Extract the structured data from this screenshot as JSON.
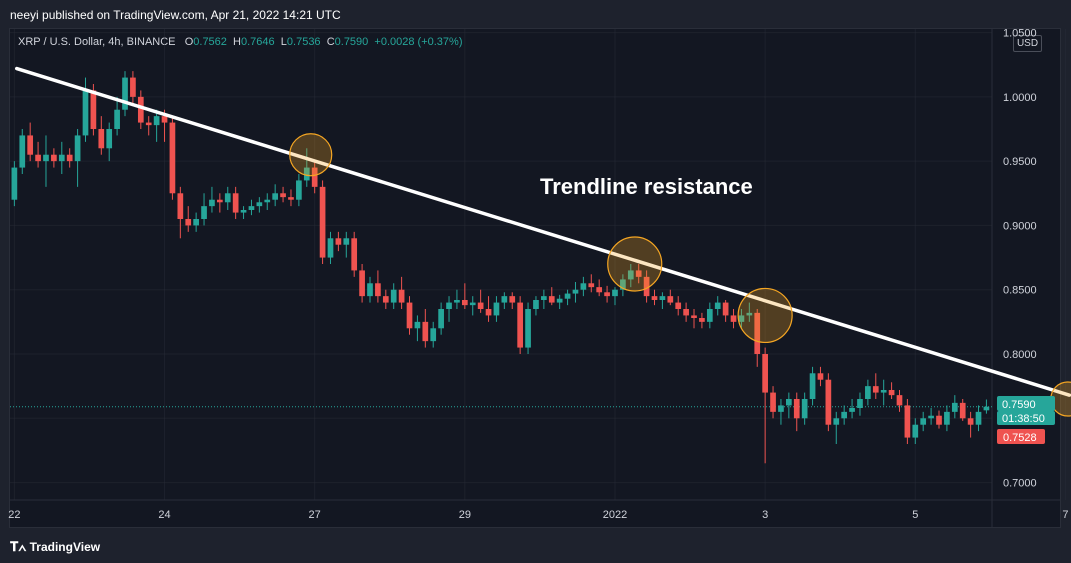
{
  "header": {
    "published": "neeyi published on TradingView.com, Apr 21, 2022 14:21 UTC"
  },
  "symbol": {
    "title": "XRP / U.S. Dollar, 4h, BINANCE",
    "o_label": "O",
    "o": "0.7562",
    "h_label": "H",
    "h": "0.7646",
    "l_label": "L",
    "l": "0.7536",
    "c_label": "C",
    "c": "0.7590",
    "change": "+0.0028 (+0.37%)"
  },
  "currency_badge": "USD",
  "footer": {
    "brand": "TradingView",
    "logo_icon": "tradingview-logo-icon"
  },
  "colors": {
    "up": "#26a69a",
    "down": "#ef5350",
    "trendline": "#ffffff",
    "circle": "#f5a623",
    "grid": "#2a2e39"
  },
  "annotation": "Trendline resistance",
  "price_labels": {
    "last": "0.7590",
    "countdown": "01:38:50",
    "low": "0.7528"
  },
  "chart_data": {
    "type": "candlestick",
    "title": "XRP / U.S. Dollar, 4h, BINANCE",
    "yaxis": {
      "ticks": [
        "0.7000",
        "0.7500",
        "0.8000",
        "0.8500",
        "0.9000",
        "0.9500",
        "1.0000",
        "1.0500"
      ],
      "range": [
        0.688,
        1.052
      ],
      "side": "right"
    },
    "xaxis": {
      "ticks": [
        "22",
        "24",
        "27",
        "29",
        "2022",
        "3",
        "5",
        "7"
      ],
      "tick_index": [
        0,
        19,
        38,
        57,
        76,
        95,
        114,
        133
      ]
    },
    "candles": [
      [
        0.92,
        0.95,
        0.915,
        0.945
      ],
      [
        0.945,
        0.975,
        0.94,
        0.97
      ],
      [
        0.97,
        0.98,
        0.95,
        0.955
      ],
      [
        0.955,
        0.965,
        0.945,
        0.95
      ],
      [
        0.95,
        0.97,
        0.93,
        0.955
      ],
      [
        0.955,
        0.96,
        0.945,
        0.95
      ],
      [
        0.95,
        0.965,
        0.94,
        0.955
      ],
      [
        0.955,
        0.96,
        0.945,
        0.95
      ],
      [
        0.95,
        0.975,
        0.93,
        0.97
      ],
      [
        0.97,
        1.015,
        0.965,
        1.005
      ],
      [
        1.005,
        1.01,
        0.97,
        0.975
      ],
      [
        0.975,
        0.985,
        0.955,
        0.96
      ],
      [
        0.96,
        0.98,
        0.95,
        0.975
      ],
      [
        0.975,
        1.0,
        0.97,
        0.99
      ],
      [
        0.99,
        1.02,
        0.985,
        1.015
      ],
      [
        1.015,
        1.02,
        0.995,
        1.0
      ],
      [
        1.0,
        1.005,
        0.975,
        0.98
      ],
      [
        0.98,
        0.985,
        0.97,
        0.978
      ],
      [
        0.978,
        0.99,
        0.965,
        0.985
      ],
      [
        0.985,
        0.99,
        0.965,
        0.98
      ],
      [
        0.98,
        0.985,
        0.92,
        0.925
      ],
      [
        0.925,
        0.93,
        0.89,
        0.905
      ],
      [
        0.905,
        0.915,
        0.895,
        0.9
      ],
      [
        0.9,
        0.91,
        0.895,
        0.905
      ],
      [
        0.905,
        0.925,
        0.9,
        0.915
      ],
      [
        0.915,
        0.93,
        0.91,
        0.92
      ],
      [
        0.92,
        0.925,
        0.91,
        0.918
      ],
      [
        0.918,
        0.93,
        0.912,
        0.925
      ],
      [
        0.925,
        0.93,
        0.905,
        0.91
      ],
      [
        0.91,
        0.915,
        0.905,
        0.912
      ],
      [
        0.912,
        0.92,
        0.908,
        0.915
      ],
      [
        0.915,
        0.922,
        0.91,
        0.918
      ],
      [
        0.918,
        0.925,
        0.912,
        0.92
      ],
      [
        0.92,
        0.932,
        0.915,
        0.925
      ],
      [
        0.925,
        0.93,
        0.918,
        0.922
      ],
      [
        0.922,
        0.928,
        0.915,
        0.92
      ],
      [
        0.92,
        0.94,
        0.915,
        0.935
      ],
      [
        0.935,
        0.96,
        0.93,
        0.945
      ],
      [
        0.945,
        0.95,
        0.925,
        0.93
      ],
      [
        0.93,
        0.935,
        0.87,
        0.875
      ],
      [
        0.875,
        0.895,
        0.87,
        0.89
      ],
      [
        0.89,
        0.895,
        0.88,
        0.885
      ],
      [
        0.885,
        0.895,
        0.875,
        0.89
      ],
      [
        0.89,
        0.895,
        0.86,
        0.865
      ],
      [
        0.865,
        0.87,
        0.84,
        0.845
      ],
      [
        0.845,
        0.86,
        0.84,
        0.855
      ],
      [
        0.855,
        0.865,
        0.84,
        0.845
      ],
      [
        0.845,
        0.85,
        0.835,
        0.84
      ],
      [
        0.84,
        0.855,
        0.835,
        0.85
      ],
      [
        0.85,
        0.86,
        0.835,
        0.84
      ],
      [
        0.84,
        0.845,
        0.815,
        0.82
      ],
      [
        0.82,
        0.83,
        0.81,
        0.825
      ],
      [
        0.825,
        0.835,
        0.805,
        0.81
      ],
      [
        0.81,
        0.825,
        0.805,
        0.82
      ],
      [
        0.82,
        0.84,
        0.815,
        0.835
      ],
      [
        0.835,
        0.845,
        0.825,
        0.84
      ],
      [
        0.84,
        0.85,
        0.835,
        0.842
      ],
      [
        0.842,
        0.855,
        0.835,
        0.838
      ],
      [
        0.838,
        0.845,
        0.83,
        0.84
      ],
      [
        0.84,
        0.85,
        0.832,
        0.835
      ],
      [
        0.835,
        0.845,
        0.825,
        0.83
      ],
      [
        0.83,
        0.845,
        0.825,
        0.84
      ],
      [
        0.84,
        0.848,
        0.835,
        0.845
      ],
      [
        0.845,
        0.848,
        0.835,
        0.84
      ],
      [
        0.84,
        0.845,
        0.8,
        0.805
      ],
      [
        0.805,
        0.84,
        0.8,
        0.835
      ],
      [
        0.835,
        0.845,
        0.83,
        0.842
      ],
      [
        0.842,
        0.85,
        0.835,
        0.845
      ],
      [
        0.845,
        0.852,
        0.838,
        0.84
      ],
      [
        0.84,
        0.846,
        0.835,
        0.843
      ],
      [
        0.843,
        0.85,
        0.838,
        0.847
      ],
      [
        0.847,
        0.856,
        0.84,
        0.85
      ],
      [
        0.85,
        0.86,
        0.845,
        0.855
      ],
      [
        0.855,
        0.862,
        0.848,
        0.852
      ],
      [
        0.852,
        0.858,
        0.845,
        0.848
      ],
      [
        0.848,
        0.853,
        0.84,
        0.845
      ],
      [
        0.845,
        0.852,
        0.838,
        0.85
      ],
      [
        0.85,
        0.862,
        0.845,
        0.858
      ],
      [
        0.858,
        0.87,
        0.852,
        0.865
      ],
      [
        0.865,
        0.87,
        0.855,
        0.86
      ],
      [
        0.86,
        0.865,
        0.84,
        0.845
      ],
      [
        0.845,
        0.85,
        0.838,
        0.842
      ],
      [
        0.842,
        0.848,
        0.835,
        0.845
      ],
      [
        0.845,
        0.85,
        0.838,
        0.84
      ],
      [
        0.84,
        0.845,
        0.83,
        0.835
      ],
      [
        0.835,
        0.84,
        0.825,
        0.83
      ],
      [
        0.83,
        0.835,
        0.82,
        0.828
      ],
      [
        0.828,
        0.832,
        0.82,
        0.825
      ],
      [
        0.825,
        0.84,
        0.82,
        0.835
      ],
      [
        0.835,
        0.845,
        0.83,
        0.84
      ],
      [
        0.84,
        0.842,
        0.825,
        0.83
      ],
      [
        0.83,
        0.835,
        0.82,
        0.825
      ],
      [
        0.825,
        0.835,
        0.82,
        0.83
      ],
      [
        0.83,
        0.84,
        0.825,
        0.832
      ],
      [
        0.832,
        0.835,
        0.79,
        0.8
      ],
      [
        0.8,
        0.805,
        0.715,
        0.77
      ],
      [
        0.77,
        0.775,
        0.75,
        0.755
      ],
      [
        0.755,
        0.765,
        0.745,
        0.76
      ],
      [
        0.76,
        0.77,
        0.75,
        0.765
      ],
      [
        0.765,
        0.77,
        0.74,
        0.75
      ],
      [
        0.75,
        0.77,
        0.745,
        0.765
      ],
      [
        0.765,
        0.79,
        0.76,
        0.785
      ],
      [
        0.785,
        0.79,
        0.775,
        0.78
      ],
      [
        0.78,
        0.785,
        0.74,
        0.745
      ],
      [
        0.745,
        0.755,
        0.73,
        0.75
      ],
      [
        0.75,
        0.76,
        0.745,
        0.755
      ],
      [
        0.755,
        0.765,
        0.75,
        0.758
      ],
      [
        0.758,
        0.77,
        0.752,
        0.765
      ],
      [
        0.765,
        0.78,
        0.76,
        0.775
      ],
      [
        0.775,
        0.785,
        0.765,
        0.77
      ],
      [
        0.77,
        0.78,
        0.76,
        0.772
      ],
      [
        0.772,
        0.778,
        0.765,
        0.768
      ],
      [
        0.768,
        0.772,
        0.755,
        0.76
      ],
      [
        0.76,
        0.765,
        0.73,
        0.735
      ],
      [
        0.735,
        0.75,
        0.73,
        0.745
      ],
      [
        0.745,
        0.755,
        0.74,
        0.75
      ],
      [
        0.75,
        0.758,
        0.745,
        0.752
      ],
      [
        0.752,
        0.756,
        0.742,
        0.745
      ],
      [
        0.745,
        0.76,
        0.74,
        0.755
      ],
      [
        0.755,
        0.768,
        0.75,
        0.762
      ],
      [
        0.762,
        0.765,
        0.748,
        0.75
      ],
      [
        0.75,
        0.755,
        0.735,
        0.745
      ],
      [
        0.745,
        0.76,
        0.74,
        0.755
      ],
      [
        0.7562,
        0.7646,
        0.7536,
        0.759
      ]
    ],
    "trendline": [
      [
        0.3,
        1.022
      ],
      [
        133.5,
        0.768
      ]
    ],
    "touch_points": [
      [
        37.5,
        0.955
      ],
      [
        78.5,
        0.87
      ],
      [
        95,
        0.83
      ],
      [
        133.3,
        0.765
      ]
    ],
    "current_price": 0.759
  }
}
